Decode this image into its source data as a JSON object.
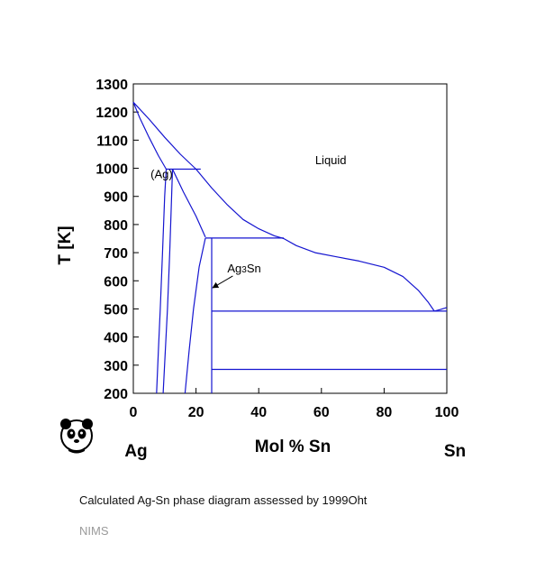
{
  "chart_data": {
    "type": "line",
    "xlabel": "Mol % Sn",
    "ylabel": "T [K]",
    "xlim": [
      0,
      100
    ],
    "ylim": [
      200,
      1300
    ],
    "x_ticks": [
      0,
      20,
      40,
      60,
      80,
      100
    ],
    "y_ticks": [
      200,
      300,
      400,
      500,
      600,
      700,
      800,
      900,
      1000,
      1100,
      1200,
      1300
    ],
    "element_left": "Ag",
    "element_right": "Sn",
    "region_labels": [
      {
        "text": "Liquid",
        "x": 58,
        "y": 1015
      },
      {
        "text": "(Ag)",
        "x": 5.5,
        "y": 965
      }
    ],
    "phase_label": {
      "base": "Ag",
      "sub": "3",
      "rest": "Sn",
      "x": 30,
      "y": 630,
      "arrow_to": [
        25,
        575
      ]
    },
    "line_color": "#1515d0",
    "series": [
      {
        "values": [
          [
            0,
            1235
          ],
          [
            5,
            1175
          ],
          [
            10,
            1110
          ],
          [
            15,
            1050
          ],
          [
            20,
            997
          ],
          [
            25,
            930
          ],
          [
            30,
            870
          ],
          [
            35,
            818
          ],
          [
            40,
            785
          ],
          [
            45,
            760
          ],
          [
            48,
            750
          ],
          [
            52,
            725
          ],
          [
            58,
            700
          ],
          [
            65,
            685
          ],
          [
            72,
            670
          ],
          [
            80,
            648
          ],
          [
            86,
            615
          ],
          [
            91,
            565
          ],
          [
            94,
            525
          ],
          [
            96,
            492
          ]
        ]
      },
      {
        "values": [
          [
            0,
            1235
          ],
          [
            2,
            1180
          ],
          [
            5,
            1110
          ],
          [
            8,
            1045
          ],
          [
            10.5,
            997
          ]
        ]
      },
      {
        "values": [
          [
            10.5,
            997
          ],
          [
            21.5,
            997
          ]
        ]
      },
      {
        "values": [
          [
            12.5,
            997
          ],
          [
            16,
            915
          ],
          [
            20,
            830
          ],
          [
            23,
            755
          ]
        ]
      },
      {
        "values": [
          [
            10.5,
            997
          ],
          [
            10,
            900
          ],
          [
            9.3,
            700
          ],
          [
            8.6,
            500
          ],
          [
            8,
            350
          ],
          [
            7.4,
            200
          ]
        ]
      },
      {
        "values": [
          [
            12.5,
            997
          ],
          [
            12.2,
            900
          ],
          [
            11.6,
            700
          ],
          [
            10.9,
            500
          ],
          [
            10.2,
            350
          ],
          [
            9.5,
            200
          ]
        ]
      },
      {
        "values": [
          [
            23,
            752
          ],
          [
            48,
            752
          ]
        ]
      },
      {
        "values": [
          [
            23,
            752
          ],
          [
            21,
            650
          ],
          [
            19.2,
            500
          ],
          [
            17.8,
            350
          ],
          [
            16.5,
            200
          ]
        ]
      },
      {
        "values": [
          [
            25,
            752
          ],
          [
            25,
            200
          ]
        ]
      },
      {
        "values": [
          [
            25,
            492
          ],
          [
            100,
            492
          ]
        ]
      },
      {
        "values": [
          [
            25,
            285
          ],
          [
            100,
            285
          ]
        ]
      },
      {
        "values": [
          [
            96,
            492
          ],
          [
            98,
            498
          ],
          [
            100,
            505
          ]
        ]
      }
    ]
  },
  "caption": "Calculated Ag-Sn phase diagram assessed by 1999Oht",
  "source": "NIMS",
  "logo": "panda-logo-icon"
}
